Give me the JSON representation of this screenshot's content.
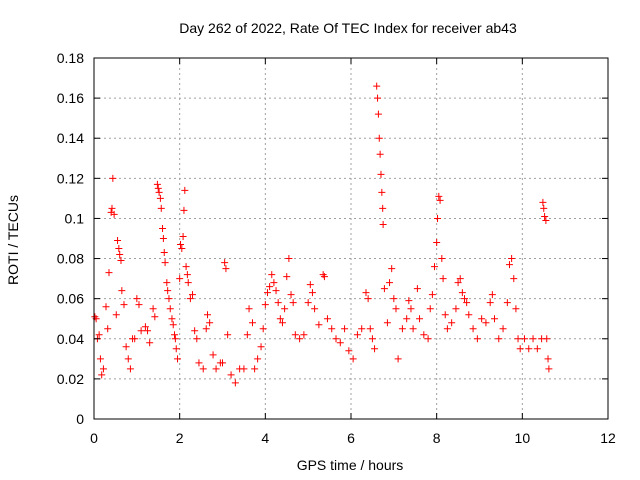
{
  "chart_data": {
    "type": "scatter",
    "title": "Day 262 of 2022, Rate Of TEC Index for receiver ab43",
    "xlabel": "GPS time / hours",
    "ylabel": "ROTI / TECUs",
    "xlim": [
      0,
      12
    ],
    "ylim": [
      0,
      0.18
    ],
    "x_ticks": [
      0,
      2,
      4,
      6,
      8,
      10,
      12
    ],
    "y_ticks": [
      0,
      0.02,
      0.04,
      0.06,
      0.08,
      0.1,
      0.12,
      0.14,
      0.16,
      0.18
    ],
    "x_tick_labels": [
      "0",
      "2",
      "4",
      "6",
      "8",
      "10",
      "12"
    ],
    "y_tick_labels": [
      "0",
      "0.02",
      "0.04",
      "0.06",
      "0.08",
      "0.1",
      "0.12",
      "0.14",
      "0.16",
      "0.18"
    ],
    "grid": true,
    "marker": "+",
    "marker_color": "#ff0000",
    "series": [
      {
        "points": [
          [
            0.02,
            0.051
          ],
          [
            0.05,
            0.05
          ],
          [
            0.08,
            0.04
          ],
          [
            0.12,
            0.042
          ],
          [
            0.15,
            0.03
          ],
          [
            0.18,
            0.022
          ],
          [
            0.22,
            0.025
          ],
          [
            0.28,
            0.056
          ],
          [
            0.32,
            0.045
          ],
          [
            0.35,
            0.073
          ],
          [
            0.4,
            0.103
          ],
          [
            0.42,
            0.105
          ],
          [
            0.44,
            0.12
          ],
          [
            0.47,
            0.102
          ],
          [
            0.52,
            0.052
          ],
          [
            0.55,
            0.089
          ],
          [
            0.58,
            0.085
          ],
          [
            0.6,
            0.082
          ],
          [
            0.63,
            0.079
          ],
          [
            0.65,
            0.064
          ],
          [
            0.7,
            0.057
          ],
          [
            0.75,
            0.036
          ],
          [
            0.8,
            0.03
          ],
          [
            0.85,
            0.025
          ],
          [
            0.9,
            0.04
          ],
          [
            0.95,
            0.04
          ],
          [
            1.0,
            0.06
          ],
          [
            1.05,
            0.057
          ],
          [
            1.1,
            0.044
          ],
          [
            1.2,
            0.046
          ],
          [
            1.25,
            0.044
          ],
          [
            1.3,
            0.038
          ],
          [
            1.38,
            0.055
          ],
          [
            1.42,
            0.051
          ],
          [
            1.48,
            0.117
          ],
          [
            1.5,
            0.115
          ],
          [
            1.52,
            0.113
          ],
          [
            1.55,
            0.11
          ],
          [
            1.57,
            0.105
          ],
          [
            1.6,
            0.095
          ],
          [
            1.62,
            0.09
          ],
          [
            1.64,
            0.083
          ],
          [
            1.66,
            0.078
          ],
          [
            1.7,
            0.068
          ],
          [
            1.72,
            0.064
          ],
          [
            1.75,
            0.06
          ],
          [
            1.78,
            0.055
          ],
          [
            1.82,
            0.05
          ],
          [
            1.85,
            0.047
          ],
          [
            1.88,
            0.042
          ],
          [
            1.9,
            0.04
          ],
          [
            1.92,
            0.035
          ],
          [
            1.95,
            0.03
          ],
          [
            2.0,
            0.07
          ],
          [
            2.02,
            0.087
          ],
          [
            2.05,
            0.085
          ],
          [
            2.08,
            0.091
          ],
          [
            2.1,
            0.104
          ],
          [
            2.12,
            0.114
          ],
          [
            2.15,
            0.076
          ],
          [
            2.18,
            0.072
          ],
          [
            2.2,
            0.068
          ],
          [
            2.25,
            0.06
          ],
          [
            2.3,
            0.062
          ],
          [
            2.35,
            0.044
          ],
          [
            2.4,
            0.04
          ],
          [
            2.45,
            0.028
          ],
          [
            2.55,
            0.025
          ],
          [
            2.62,
            0.045
          ],
          [
            2.65,
            0.052
          ],
          [
            2.7,
            0.048
          ],
          [
            2.78,
            0.032
          ],
          [
            2.85,
            0.025
          ],
          [
            2.95,
            0.028
          ],
          [
            3.0,
            0.028
          ],
          [
            3.05,
            0.078
          ],
          [
            3.08,
            0.075
          ],
          [
            3.12,
            0.042
          ],
          [
            3.2,
            0.022
          ],
          [
            3.3,
            0.018
          ],
          [
            3.4,
            0.025
          ],
          [
            3.5,
            0.025
          ],
          [
            3.58,
            0.042
          ],
          [
            3.62,
            0.055
          ],
          [
            3.7,
            0.048
          ],
          [
            3.75,
            0.025
          ],
          [
            3.82,
            0.03
          ],
          [
            3.9,
            0.036
          ],
          [
            3.95,
            0.045
          ],
          [
            4.0,
            0.057
          ],
          [
            4.05,
            0.063
          ],
          [
            4.1,
            0.066
          ],
          [
            4.15,
            0.072
          ],
          [
            4.2,
            0.068
          ],
          [
            4.25,
            0.064
          ],
          [
            4.3,
            0.058
          ],
          [
            4.35,
            0.05
          ],
          [
            4.4,
            0.048
          ],
          [
            4.45,
            0.055
          ],
          [
            4.5,
            0.071
          ],
          [
            4.55,
            0.08
          ],
          [
            4.6,
            0.062
          ],
          [
            4.65,
            0.058
          ],
          [
            4.7,
            0.042
          ],
          [
            4.8,
            0.04
          ],
          [
            4.9,
            0.042
          ],
          [
            5.0,
            0.058
          ],
          [
            5.05,
            0.067
          ],
          [
            5.1,
            0.063
          ],
          [
            5.15,
            0.055
          ],
          [
            5.25,
            0.047
          ],
          [
            5.35,
            0.072
          ],
          [
            5.38,
            0.071
          ],
          [
            5.45,
            0.05
          ],
          [
            5.55,
            0.045
          ],
          [
            5.65,
            0.04
          ],
          [
            5.75,
            0.038
          ],
          [
            5.85,
            0.045
          ],
          [
            5.95,
            0.034
          ],
          [
            6.05,
            0.03
          ],
          [
            6.15,
            0.042
          ],
          [
            6.25,
            0.045
          ],
          [
            6.35,
            0.063
          ],
          [
            6.4,
            0.06
          ],
          [
            6.45,
            0.045
          ],
          [
            6.5,
            0.04
          ],
          [
            6.55,
            0.035
          ],
          [
            6.6,
            0.166
          ],
          [
            6.62,
            0.16
          ],
          [
            6.64,
            0.152
          ],
          [
            6.66,
            0.14
          ],
          [
            6.68,
            0.132
          ],
          [
            6.7,
            0.122
          ],
          [
            6.72,
            0.113
          ],
          [
            6.74,
            0.105
          ],
          [
            6.75,
            0.097
          ],
          [
            6.78,
            0.065
          ],
          [
            6.85,
            0.048
          ],
          [
            6.9,
            0.068
          ],
          [
            6.95,
            0.075
          ],
          [
            7.0,
            0.06
          ],
          [
            7.05,
            0.055
          ],
          [
            7.1,
            0.03
          ],
          [
            7.2,
            0.045
          ],
          [
            7.3,
            0.05
          ],
          [
            7.35,
            0.059
          ],
          [
            7.4,
            0.055
          ],
          [
            7.45,
            0.045
          ],
          [
            7.55,
            0.065
          ],
          [
            7.6,
            0.05
          ],
          [
            7.7,
            0.042
          ],
          [
            7.8,
            0.04
          ],
          [
            7.85,
            0.055
          ],
          [
            7.9,
            0.062
          ],
          [
            7.95,
            0.076
          ],
          [
            8.0,
            0.088
          ],
          [
            8.02,
            0.1
          ],
          [
            8.05,
            0.111
          ],
          [
            8.08,
            0.109
          ],
          [
            8.12,
            0.08
          ],
          [
            8.15,
            0.07
          ],
          [
            8.2,
            0.052
          ],
          [
            8.25,
            0.045
          ],
          [
            8.35,
            0.048
          ],
          [
            8.45,
            0.055
          ],
          [
            8.5,
            0.068
          ],
          [
            8.55,
            0.07
          ],
          [
            8.6,
            0.063
          ],
          [
            8.65,
            0.06
          ],
          [
            8.7,
            0.058
          ],
          [
            8.75,
            0.052
          ],
          [
            8.85,
            0.045
          ],
          [
            8.95,
            0.04
          ],
          [
            9.05,
            0.05
          ],
          [
            9.15,
            0.048
          ],
          [
            9.25,
            0.058
          ],
          [
            9.3,
            0.062
          ],
          [
            9.35,
            0.05
          ],
          [
            9.45,
            0.04
          ],
          [
            9.55,
            0.045
          ],
          [
            9.65,
            0.058
          ],
          [
            9.7,
            0.077
          ],
          [
            9.75,
            0.08
          ],
          [
            9.8,
            0.07
          ],
          [
            9.85,
            0.055
          ],
          [
            9.9,
            0.04
          ],
          [
            9.95,
            0.035
          ],
          [
            10.05,
            0.04
          ],
          [
            10.15,
            0.035
          ],
          [
            10.25,
            0.04
          ],
          [
            10.35,
            0.035
          ],
          [
            10.45,
            0.04
          ],
          [
            10.48,
            0.108
          ],
          [
            10.5,
            0.105
          ],
          [
            10.52,
            0.101
          ],
          [
            10.55,
            0.099
          ],
          [
            10.57,
            0.04
          ],
          [
            10.6,
            0.03
          ],
          [
            10.62,
            0.025
          ]
        ]
      }
    ]
  }
}
